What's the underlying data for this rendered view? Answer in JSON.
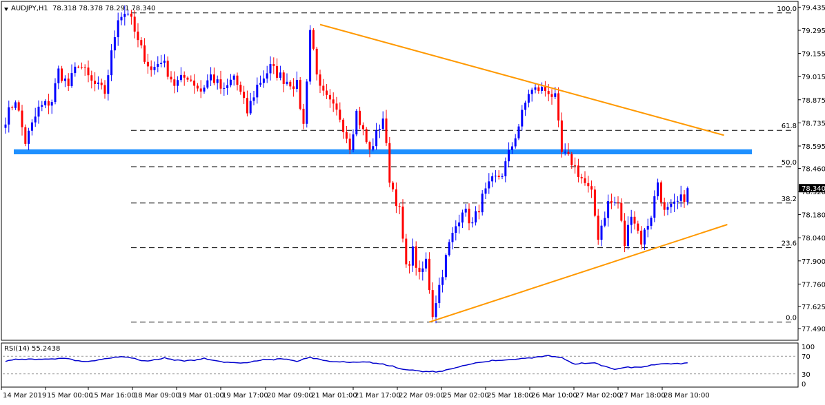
{
  "chart_data": [
    {
      "type": "candlestick",
      "symbol": "AUDJPY,H1",
      "ohlc_label": "78.318 78.378 78.291 78.340",
      "current_price": "78.340",
      "y_range": [
        77.42,
        79.47
      ],
      "y_ticks": [
        "79.435",
        "79.295",
        "79.155",
        "79.015",
        "78.875",
        "78.735",
        "78.595",
        "78.460",
        "78.320",
        "78.180",
        "78.040",
        "77.900",
        "77.760",
        "77.625",
        "77.490"
      ],
      "x_tick_labels": [
        "14 Mar 2019",
        "15 Mar 00:00",
        "15 Mar 16:00",
        "18 Mar 09:00",
        "19 Mar 01:00",
        "19 Mar 17:00",
        "20 Mar 09:00",
        "21 Mar 01:00",
        "21 Mar 17:00",
        "22 Mar 09:00",
        "25 Mar 02:00",
        "25 Mar 18:00",
        "26 Mar 10:00",
        "27 Mar 02:00",
        "27 Mar 18:00",
        "28 Mar 10:00"
      ],
      "fib_levels": [
        {
          "label": "100.0",
          "value": 79.4
        },
        {
          "label": "61.8",
          "value": 78.69
        },
        {
          "label": "50.0",
          "value": 78.47
        },
        {
          "label": "38.2",
          "value": 78.25
        },
        {
          "label": "23.6",
          "value": 77.98
        },
        {
          "label": "0.0",
          "value": 77.53
        }
      ],
      "resistance_zone": [
        78.545,
        78.575
      ],
      "trendlines": [
        {
          "name": "resistance",
          "color": "#ff9900",
          "from_bar": 95,
          "from": 79.33,
          "to_bar": 217,
          "to": 78.66
        },
        {
          "name": "support",
          "color": "#ff9900",
          "from_bar": 128,
          "from": 77.53,
          "to_bar": 218,
          "to": 78.12
        }
      ],
      "anchors": [
        [
          0,
          78.76
        ],
        [
          3,
          78.88
        ],
        [
          6,
          78.62
        ],
        [
          10,
          78.82
        ],
        [
          14,
          78.87
        ],
        [
          16,
          79.05
        ],
        [
          19,
          78.96
        ],
        [
          22,
          79.1
        ],
        [
          26,
          78.98
        ],
        [
          30,
          78.92
        ],
        [
          34,
          79.38
        ],
        [
          37,
          79.41
        ],
        [
          40,
          79.22
        ],
        [
          44,
          79.05
        ],
        [
          47,
          79.12
        ],
        [
          51,
          78.97
        ],
        [
          55,
          79.02
        ],
        [
          59,
          78.93
        ],
        [
          62,
          79.02
        ],
        [
          66,
          78.92
        ],
        [
          69,
          79.02
        ],
        [
          73,
          78.8
        ],
        [
          76,
          78.96
        ],
        [
          80,
          79.07
        ],
        [
          84,
          79.0
        ],
        [
          88,
          78.96
        ],
        [
          90,
          78.72
        ],
        [
          92,
          79.3
        ],
        [
          95,
          78.93
        ],
        [
          98,
          78.85
        ],
        [
          101,
          78.77
        ],
        [
          104,
          78.6
        ],
        [
          106,
          78.8
        ],
        [
          110,
          78.56
        ],
        [
          114,
          78.77
        ],
        [
          116,
          78.4
        ],
        [
          119,
          78.2
        ],
        [
          121,
          77.85
        ],
        [
          123,
          77.96
        ],
        [
          125,
          77.8
        ],
        [
          127,
          77.9
        ],
        [
          129,
          77.58
        ],
        [
          131,
          77.75
        ],
        [
          134,
          78.0
        ],
        [
          138,
          78.22
        ],
        [
          141,
          78.12
        ],
        [
          144,
          78.28
        ],
        [
          147,
          78.38
        ],
        [
          150,
          78.43
        ],
        [
          153,
          78.6
        ],
        [
          155,
          78.72
        ],
        [
          158,
          78.92
        ],
        [
          161,
          78.94
        ],
        [
          164,
          78.93
        ],
        [
          166,
          78.88
        ],
        [
          168,
          78.55
        ],
        [
          171,
          78.5
        ],
        [
          174,
          78.4
        ],
        [
          177,
          78.3
        ],
        [
          179,
          78.05
        ],
        [
          182,
          78.25
        ],
        [
          185,
          78.25
        ],
        [
          187,
          78.0
        ],
        [
          189,
          78.2
        ],
        [
          192,
          78.02
        ],
        [
          195,
          78.18
        ],
        [
          197,
          78.38
        ],
        [
          199,
          78.19
        ],
        [
          202,
          78.23
        ],
        [
          205,
          78.29
        ],
        [
          206,
          78.34
        ]
      ],
      "bar_count": 207,
      "colors": {
        "up": "#0000ff",
        "down": "#ff0000",
        "trendline": "#ff9900",
        "zone": "#1e90ff",
        "rsi": "#0000cd"
      }
    },
    {
      "type": "line",
      "title": "RSI(14) 55.2438",
      "y_range": [
        0,
        100
      ],
      "y_ticks": [
        "100",
        "70",
        "30",
        "0"
      ],
      "levels": [
        70,
        30
      ],
      "anchors": [
        [
          0,
          60
        ],
        [
          6,
          64
        ],
        [
          12,
          63
        ],
        [
          18,
          66
        ],
        [
          24,
          57
        ],
        [
          30,
          64
        ],
        [
          36,
          70
        ],
        [
          42,
          58
        ],
        [
          48,
          65
        ],
        [
          54,
          60
        ],
        [
          60,
          64
        ],
        [
          66,
          57
        ],
        [
          72,
          54
        ],
        [
          78,
          62
        ],
        [
          84,
          65
        ],
        [
          88,
          58
        ],
        [
          92,
          68
        ],
        [
          98,
          58
        ],
        [
          104,
          56
        ],
        [
          110,
          57
        ],
        [
          116,
          48
        ],
        [
          120,
          40
        ],
        [
          126,
          36
        ],
        [
          130,
          34
        ],
        [
          136,
          44
        ],
        [
          142,
          55
        ],
        [
          148,
          60
        ],
        [
          154,
          63
        ],
        [
          160,
          68
        ],
        [
          164,
          72
        ],
        [
          168,
          66
        ],
        [
          172,
          52
        ],
        [
          178,
          55
        ],
        [
          184,
          40
        ],
        [
          188,
          46
        ],
        [
          192,
          45
        ],
        [
          198,
          53
        ],
        [
          204,
          54
        ],
        [
          206,
          55
        ]
      ]
    }
  ]
}
